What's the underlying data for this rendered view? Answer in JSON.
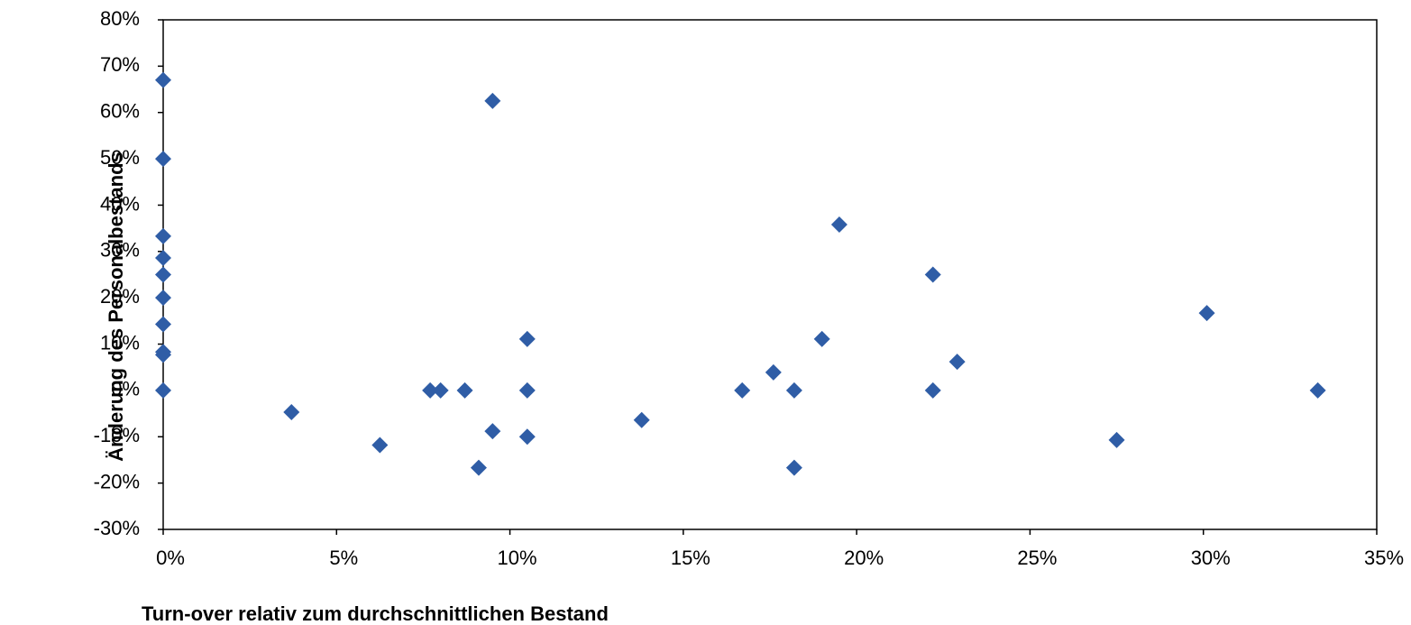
{
  "chart_data": {
    "type": "scatter",
    "x_label": "Turn-over relativ zum durchschnittlichen Bestand",
    "y_label": "Änderung des Personalbestands",
    "x": [
      0,
      0,
      0,
      0,
      0,
      0,
      0,
      0,
      0,
      0,
      3.7,
      6.25,
      7.7,
      8.0,
      8.7,
      9.1,
      9.5,
      9.5,
      10.5,
      10.5,
      10.5,
      13.8,
      16.7,
      17.6,
      18.2,
      18.2,
      19.0,
      19.5,
      22.2,
      22.2,
      22.9,
      27.5,
      30.1,
      33.3
    ],
    "y": [
      67.0,
      50,
      33.3,
      28.6,
      25,
      20,
      14.3,
      8.3,
      7.7,
      0,
      -4.7,
      -11.8,
      0,
      0,
      0,
      -16.7,
      62.5,
      -8.8,
      11.1,
      0,
      -10,
      -6.4,
      0,
      3.9,
      0,
      -16.7,
      11.1,
      35.8,
      25,
      0,
      6.2,
      -10.7,
      16.7,
      0
    ],
    "color": "#2f5da6",
    "xlim": [
      0,
      35
    ],
    "ylim": [
      -30,
      80
    ],
    "xticks": [
      {
        "value": 0,
        "label": "0%"
      },
      {
        "value": 5,
        "label": "5%"
      },
      {
        "value": 10,
        "label": "10%"
      },
      {
        "value": 15,
        "label": "15%"
      },
      {
        "value": 20,
        "label": "20%"
      },
      {
        "value": 25,
        "label": "25%"
      },
      {
        "value": 30,
        "label": "30%"
      },
      {
        "value": 35,
        "label": "35%"
      }
    ],
    "yticks": [
      {
        "value": -30,
        "label": "-30%"
      },
      {
        "value": -20,
        "label": "-20%"
      },
      {
        "value": -10,
        "label": "-10%"
      },
      {
        "value": 0,
        "label": "0%"
      },
      {
        "value": 10,
        "label": "10%"
      },
      {
        "value": 20,
        "label": "20%"
      },
      {
        "value": 30,
        "label": "30%"
      },
      {
        "value": 40,
        "label": "40%"
      },
      {
        "value": 50,
        "label": "50%"
      },
      {
        "value": 60,
        "label": "60%"
      },
      {
        "value": 70,
        "label": "70%"
      },
      {
        "value": 80,
        "label": "80%"
      }
    ],
    "grid": false
  }
}
